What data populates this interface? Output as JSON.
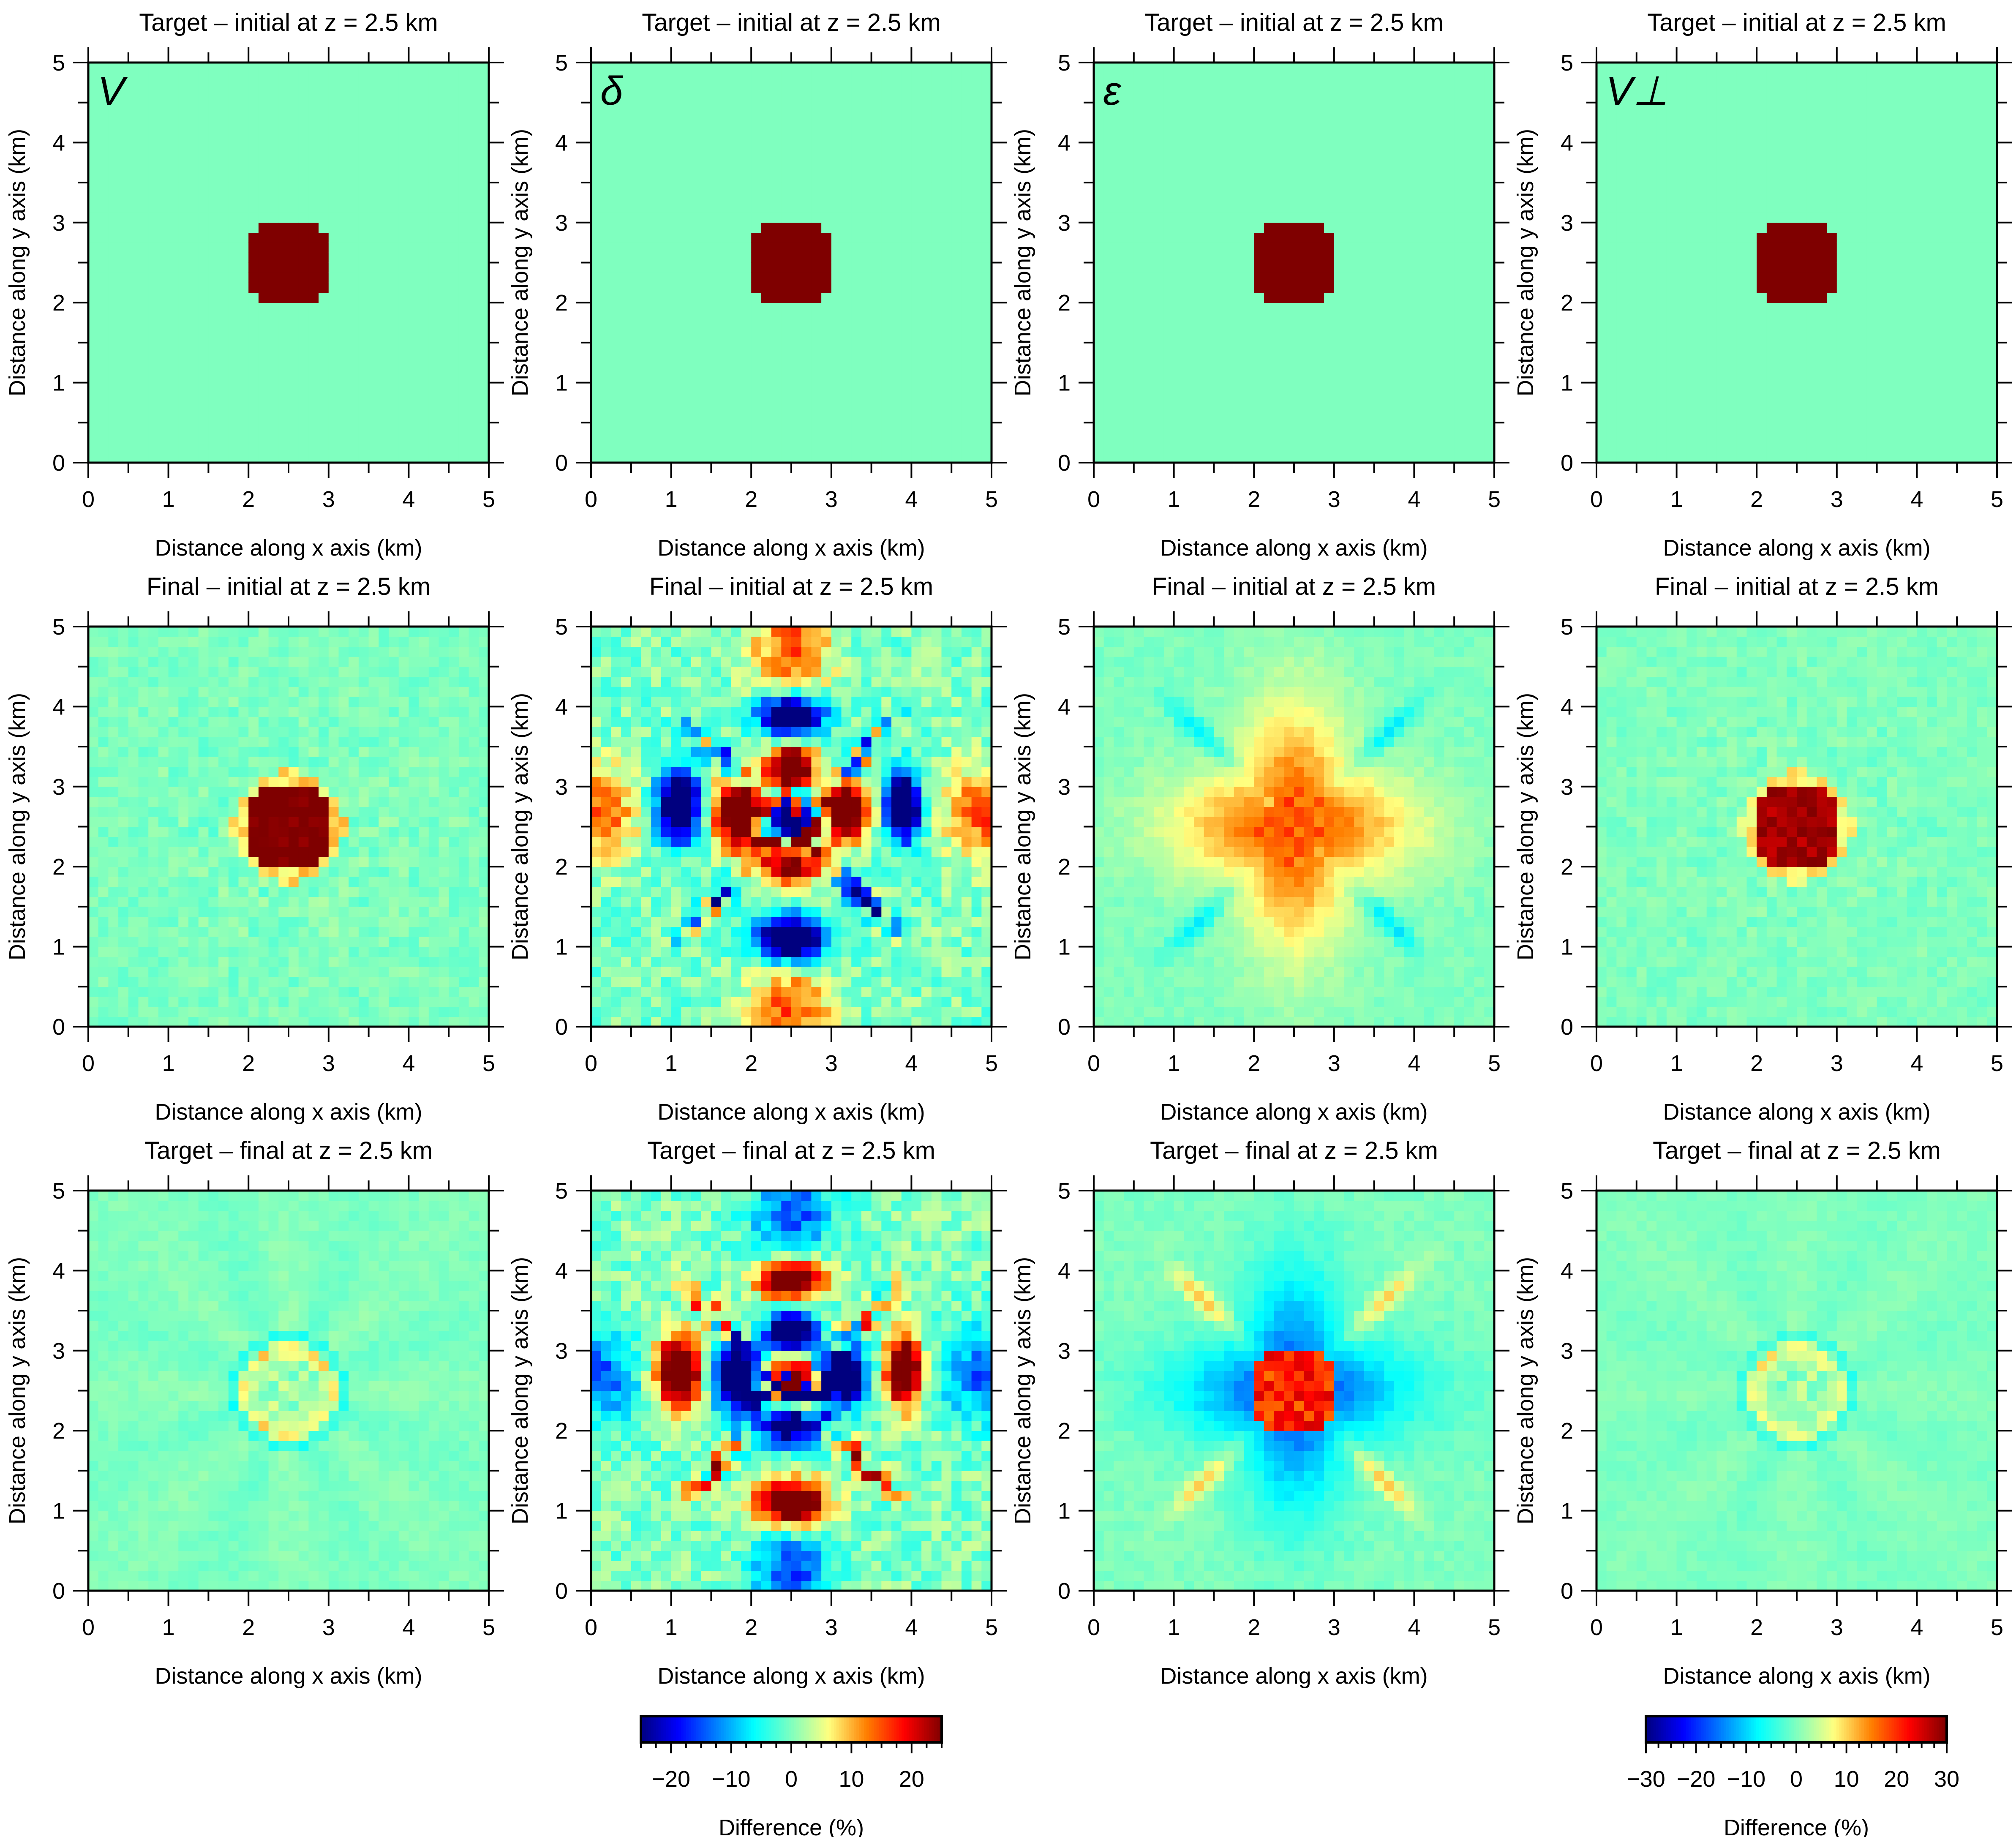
{
  "figure": {
    "colormap": [
      "#00007f",
      "#0000ff",
      "#007fff",
      "#00ffff",
      "#7fffbf",
      "#ffff7f",
      "#ff7f00",
      "#ff0000",
      "#7f0000"
    ],
    "colormap_stops": [
      0,
      0.125,
      0.25,
      0.375,
      0.5,
      0.625,
      0.75,
      0.875,
      1
    ]
  },
  "chart_data": [
    {
      "type": "heatmap",
      "row": "target-initial",
      "param": "V",
      "param_label": "V",
      "title": "Target – initial at  z = 2.5 km",
      "xlabel": "Distance along x axis (km)",
      "ylabel": "Distance along y axis (km)",
      "xlim": [
        0,
        5
      ],
      "ylim": [
        0,
        5
      ],
      "xticks": [
        "0",
        "1",
        "2",
        "3",
        "4",
        "5"
      ],
      "yticks": [
        "0",
        "1",
        "2",
        "3",
        "4",
        "5"
      ],
      "grid": false,
      "colorbar": "left",
      "model": {
        "kind": "disk",
        "center": [
          2.5,
          2.5
        ],
        "radius_km": 0.55,
        "amplitude": 30,
        "noise": 0
      }
    },
    {
      "type": "heatmap",
      "row": "target-initial",
      "param": "delta",
      "param_label": "δ",
      "title": "Target – initial at  z = 2.5 km",
      "xlabel": "Distance along x axis (km)",
      "ylabel": "Distance along y axis (km)",
      "xlim": [
        0,
        5
      ],
      "ylim": [
        0,
        5
      ],
      "xticks": [
        "0",
        "1",
        "2",
        "3",
        "4",
        "5"
      ],
      "yticks": [
        "0",
        "1",
        "2",
        "3",
        "4",
        "5"
      ],
      "grid": false,
      "colorbar": "left",
      "model": {
        "kind": "disk",
        "center": [
          2.5,
          2.5
        ],
        "radius_km": 0.55,
        "amplitude": 30,
        "noise": 0
      }
    },
    {
      "type": "heatmap",
      "row": "target-initial",
      "param": "epsilon",
      "param_label": "ε",
      "title": "Target – initial at  z = 2.5 km",
      "xlabel": "Distance along x axis (km)",
      "ylabel": "Distance along y axis (km)",
      "xlim": [
        0,
        5
      ],
      "ylim": [
        0,
        5
      ],
      "xticks": [
        "0",
        "1",
        "2",
        "3",
        "4",
        "5"
      ],
      "yticks": [
        "0",
        "1",
        "2",
        "3",
        "4",
        "5"
      ],
      "grid": false,
      "colorbar": "left",
      "model": {
        "kind": "disk",
        "center": [
          2.5,
          2.5
        ],
        "radius_km": 0.55,
        "amplitude": 30,
        "noise": 0
      }
    },
    {
      "type": "heatmap",
      "row": "target-initial",
      "param": "Vperp",
      "param_label": "V⊥",
      "title": "Target – initial at  z = 2.5 km",
      "xlabel": "Distance along x axis (km)",
      "ylabel": "Distance along y axis (km)",
      "xlim": [
        0,
        5
      ],
      "ylim": [
        0,
        5
      ],
      "xticks": [
        "0",
        "1",
        "2",
        "3",
        "4",
        "5"
      ],
      "yticks": [
        "0",
        "1",
        "2",
        "3",
        "4",
        "5"
      ],
      "grid": false,
      "colorbar": "right",
      "model": {
        "kind": "disk",
        "center": [
          2.5,
          2.5
        ],
        "radius_km": 0.55,
        "amplitude": 30,
        "noise": 0
      }
    },
    {
      "type": "heatmap",
      "row": "final-initial",
      "param": "V",
      "title": "Final – initial at  z = 2.5 km",
      "xlabel": "Distance along x axis (km)",
      "ylabel": "Distance along y axis (km)",
      "xlim": [
        0,
        5
      ],
      "ylim": [
        0,
        5
      ],
      "xticks": [
        "0",
        "1",
        "2",
        "3",
        "4",
        "5"
      ],
      "yticks": [
        "0",
        "1",
        "2",
        "3",
        "4",
        "5"
      ],
      "grid": false,
      "colorbar": "left",
      "model": {
        "kind": "recovered-disk",
        "center": [
          2.5,
          2.5
        ],
        "radius_km": 0.55,
        "amplitude": 28,
        "noise": 2.5
      }
    },
    {
      "type": "heatmap",
      "row": "final-initial",
      "param": "delta",
      "title": "Final – initial at  z = 2.5 km",
      "xlabel": "Distance along x axis (km)",
      "ylabel": "Distance along y axis (km)",
      "xlim": [
        0,
        5
      ],
      "ylim": [
        0,
        5
      ],
      "xticks": [
        "0",
        "1",
        "2",
        "3",
        "4",
        "5"
      ],
      "yticks": [
        "0",
        "1",
        "2",
        "3",
        "4",
        "5"
      ],
      "grid": false,
      "colorbar": "left",
      "model": {
        "kind": "cross-lobes",
        "center": [
          2.5,
          2.5
        ],
        "inner_sign": -1,
        "amplitude": 25,
        "noise": 4
      }
    },
    {
      "type": "heatmap",
      "row": "final-initial",
      "param": "epsilon",
      "title": "Final – initial at  z = 2.5 km",
      "xlabel": "Distance along x axis (km)",
      "ylabel": "Distance along y axis (km)",
      "xlim": [
        0,
        5
      ],
      "ylim": [
        0,
        5
      ],
      "xticks": [
        "0",
        "1",
        "2",
        "3",
        "4",
        "5"
      ],
      "yticks": [
        "0",
        "1",
        "2",
        "3",
        "4",
        "5"
      ],
      "grid": false,
      "colorbar": "left",
      "model": {
        "kind": "cross",
        "center": [
          2.5,
          2.5
        ],
        "amplitude": 15,
        "noise": 2
      }
    },
    {
      "type": "heatmap",
      "row": "final-initial",
      "param": "Vperp",
      "title": "Final – initial at  z = 2.5 km",
      "xlabel": "Distance along x axis (km)",
      "ylabel": "Distance along y axis (km)",
      "xlim": [
        0,
        5
      ],
      "ylim": [
        0,
        5
      ],
      "xticks": [
        "0",
        "1",
        "2",
        "3",
        "4",
        "5"
      ],
      "yticks": [
        "0",
        "1",
        "2",
        "3",
        "4",
        "5"
      ],
      "grid": false,
      "colorbar": "right",
      "model": {
        "kind": "recovered-disk",
        "center": [
          2.5,
          2.5
        ],
        "radius_km": 0.55,
        "amplitude": 30,
        "noise": 2.5
      }
    },
    {
      "type": "heatmap",
      "row": "target-final",
      "param": "V",
      "title": "Target – final at  z = 2.5 km",
      "xlabel": "Distance along x axis (km)",
      "ylabel": "Distance along y axis (km)",
      "xlim": [
        0,
        5
      ],
      "ylim": [
        0,
        5
      ],
      "xticks": [
        "0",
        "1",
        "2",
        "3",
        "4",
        "5"
      ],
      "yticks": [
        "0",
        "1",
        "2",
        "3",
        "4",
        "5"
      ],
      "grid": false,
      "colorbar": "left",
      "model": {
        "kind": "ring",
        "center": [
          2.5,
          2.5
        ],
        "radius_km": 0.55,
        "amplitude": 6,
        "noise": 2
      }
    },
    {
      "type": "heatmap",
      "row": "target-final",
      "param": "delta",
      "title": "Target – final at  z = 2.5 km",
      "xlabel": "Distance along x axis (km)",
      "ylabel": "Distance along y axis (km)",
      "xlim": [
        0,
        5
      ],
      "ylim": [
        0,
        5
      ],
      "xticks": [
        "0",
        "1",
        "2",
        "3",
        "4",
        "5"
      ],
      "yticks": [
        "0",
        "1",
        "2",
        "3",
        "4",
        "5"
      ],
      "grid": false,
      "colorbar": "left",
      "model": {
        "kind": "cross-lobes",
        "center": [
          2.5,
          2.5
        ],
        "inner_sign": 1,
        "amplitude": 25,
        "noise": 4
      }
    },
    {
      "type": "heatmap",
      "row": "target-final",
      "param": "epsilon",
      "title": "Target – final at  z = 2.5 km",
      "xlabel": "Distance along x axis (km)",
      "ylabel": "Distance along y axis (km)",
      "xlim": [
        0,
        5
      ],
      "ylim": [
        0,
        5
      ],
      "xticks": [
        "0",
        "1",
        "2",
        "3",
        "4",
        "5"
      ],
      "yticks": [
        "0",
        "1",
        "2",
        "3",
        "4",
        "5"
      ],
      "grid": false,
      "colorbar": "left",
      "model": {
        "kind": "inverse-cross",
        "center": [
          2.5,
          2.5
        ],
        "amplitude": 15,
        "noise": 2
      }
    },
    {
      "type": "heatmap",
      "row": "target-final",
      "param": "Vperp",
      "title": "Target – final at  z = 2.5 km",
      "xlabel": "Distance along x axis (km)",
      "ylabel": "Distance along y axis (km)",
      "xlim": [
        0,
        5
      ],
      "ylim": [
        0,
        5
      ],
      "xticks": [
        "0",
        "1",
        "2",
        "3",
        "4",
        "5"
      ],
      "yticks": [
        "0",
        "1",
        "2",
        "3",
        "4",
        "5"
      ],
      "grid": false,
      "colorbar": "right",
      "model": {
        "kind": "ring",
        "center": [
          2.5,
          2.5
        ],
        "radius_km": 0.55,
        "amplitude": 6,
        "noise": 2
      }
    }
  ],
  "colorbars": [
    {
      "name": "left",
      "range": [
        -25,
        25
      ],
      "ticks": [
        "−20",
        "−10",
        "0",
        "10",
        "20"
      ],
      "tick_values": [
        -20,
        -10,
        0,
        10,
        20
      ],
      "minor_step": 2.5,
      "label": "Difference (%)"
    },
    {
      "name": "right",
      "range": [
        -30,
        30
      ],
      "ticks": [
        "−30",
        "−20",
        "−10",
        "0",
        "10",
        "20",
        "30"
      ],
      "tick_values": [
        -30,
        -20,
        -10,
        0,
        10,
        20,
        30
      ],
      "minor_step": 2.5,
      "label": "Difference (%)"
    }
  ],
  "grid_cells": 40
}
